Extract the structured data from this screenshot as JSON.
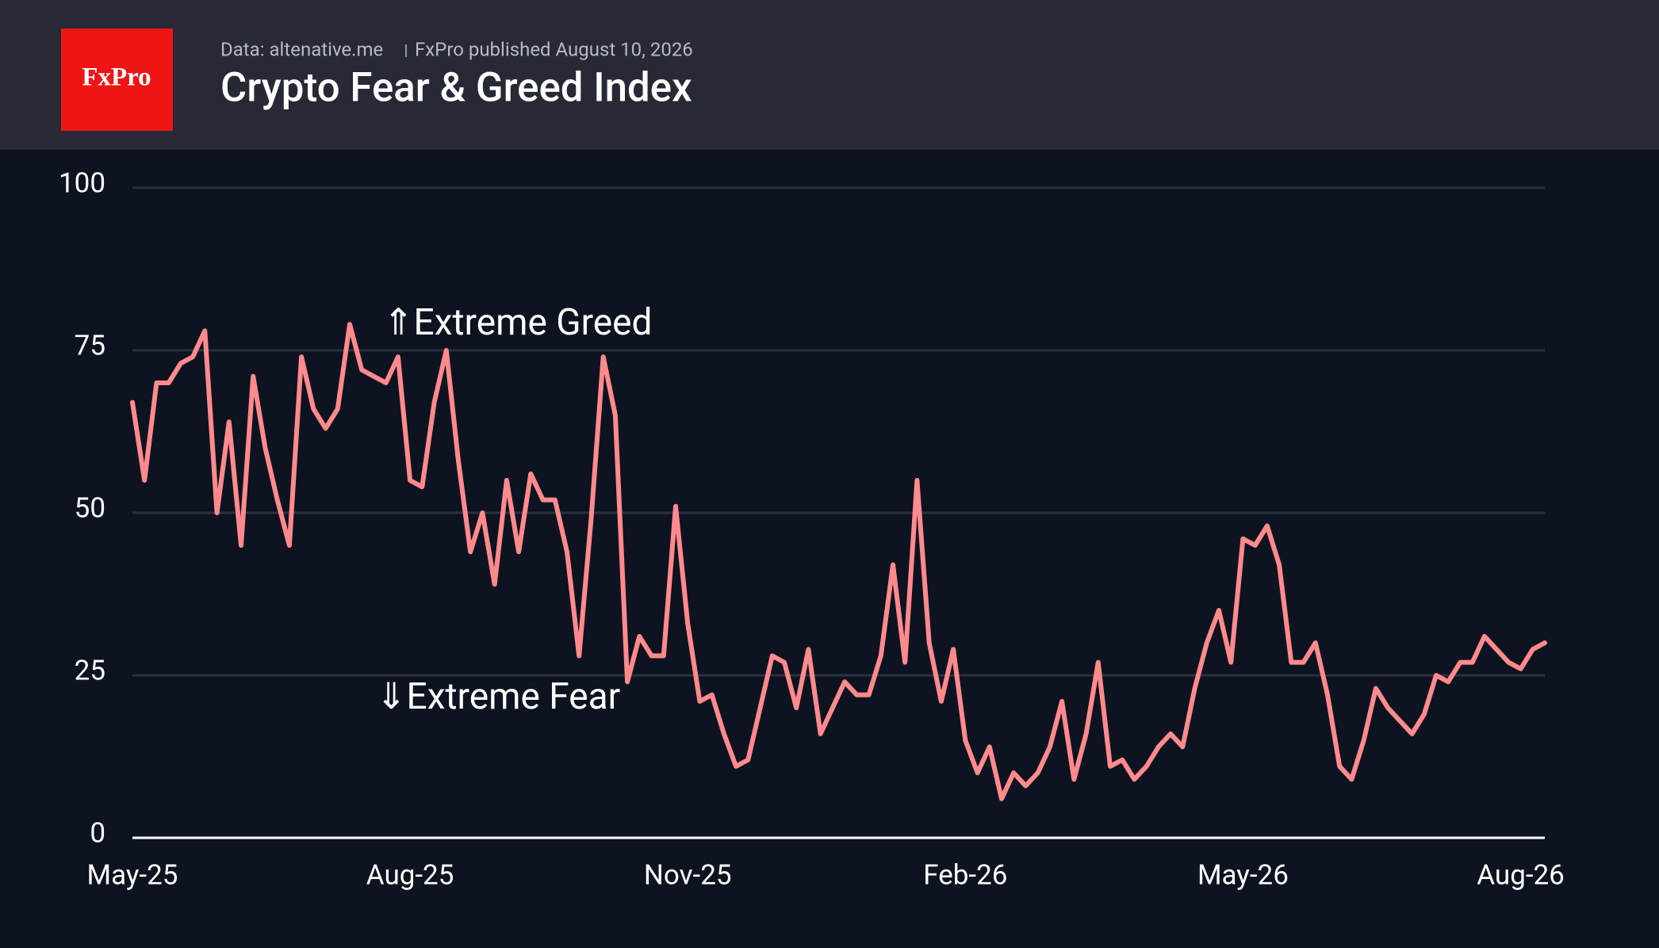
{
  "header": {
    "logo": "FxPro",
    "source": "Data: altenative.me",
    "published": "FxPro published August 10, 2026"
  },
  "chart_data": {
    "type": "line",
    "title": "Crypto Fear & Greed Index",
    "annotations": {
      "greed": "⇑Extreme Greed",
      "fear": "⇓Extreme Fear"
    },
    "categories": [
      "May-25",
      null,
      null,
      null,
      null,
      null,
      null,
      null,
      null,
      null,
      null,
      null,
      null,
      null,
      null,
      null,
      null,
      null,
      null,
      null,
      null,
      null,
      null,
      "Aug-25",
      null,
      null,
      null,
      null,
      null,
      null,
      null,
      null,
      null,
      null,
      null,
      null,
      null,
      null,
      null,
      null,
      null,
      null,
      null,
      null,
      null,
      null,
      "Nov-25",
      null,
      null,
      null,
      null,
      null,
      null,
      null,
      null,
      null,
      null,
      null,
      null,
      null,
      null,
      null,
      null,
      null,
      null,
      null,
      null,
      null,
      null,
      "Feb-26",
      null,
      null,
      null,
      null,
      null,
      null,
      null,
      null,
      null,
      null,
      null,
      null,
      null,
      null,
      null,
      null,
      null,
      null,
      null,
      null,
      null,
      null,
      "May-26",
      null,
      null,
      null,
      null,
      null,
      null,
      null,
      null,
      null,
      null,
      null,
      null,
      null,
      null,
      null,
      null,
      null,
      null,
      null,
      null,
      null,
      null,
      "Aug-26",
      null,
      null
    ],
    "series": [
      {
        "color": "#ff8a8c",
        "values": [
          67,
          55,
          70,
          70,
          73,
          74,
          78,
          50,
          64,
          45,
          71,
          60,
          52,
          45,
          74,
          66,
          63,
          66,
          79,
          72,
          71,
          70,
          74,
          55,
          54,
          67,
          75,
          58,
          44,
          50,
          39,
          55,
          44,
          56,
          52,
          52,
          44,
          28,
          49,
          74,
          65,
          24,
          31,
          28,
          28,
          51,
          33,
          21,
          22,
          16,
          11,
          12,
          20,
          28,
          27,
          20,
          29,
          16,
          20,
          24,
          22,
          22,
          28,
          42,
          27,
          55,
          30,
          21,
          29,
          15,
          10,
          14,
          6,
          10,
          8,
          10,
          14,
          21,
          9,
          16,
          27,
          11,
          12,
          9,
          11,
          14,
          16,
          14,
          23,
          30,
          35,
          27,
          46,
          45,
          48,
          42,
          27,
          27,
          30,
          22,
          11,
          9,
          15,
          23,
          20,
          18,
          16,
          19,
          25,
          24,
          27,
          27,
          31,
          29,
          27,
          26,
          29,
          30
        ]
      }
    ],
    "ylim": [
      0,
      100
    ],
    "yticks": [
      0,
      25,
      50,
      75,
      100
    ],
    "grid": true
  }
}
